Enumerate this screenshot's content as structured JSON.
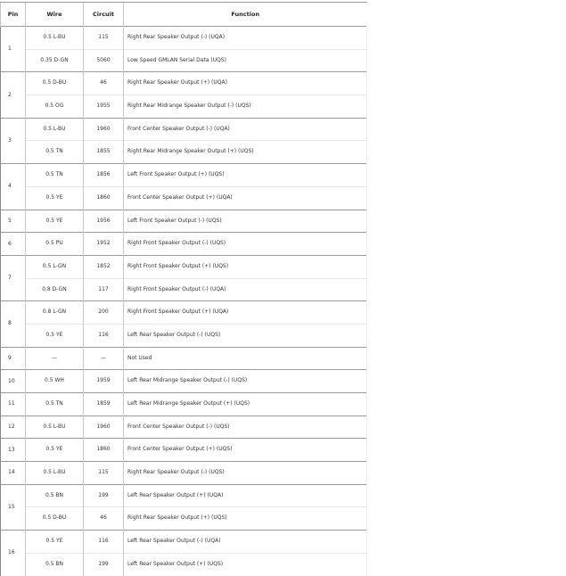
{
  "headers": {
    "pin": "Pin",
    "wire": "Wire",
    "circuit": "Circuit",
    "function": "Function"
  },
  "pins": [
    {
      "pin": "1",
      "rows": [
        [
          "0.5 L-BU",
          "115",
          "Right Rear Speaker Output (-) (UQA)"
        ],
        [
          "0.35 D-GN",
          "5060",
          "Low Speed GMLAN Serial Data (UQS)"
        ]
      ]
    },
    {
      "pin": "2",
      "rows": [
        [
          "0.5 D-BU",
          "46",
          "Right Rear Speaker Output (+) (UQA)"
        ],
        [
          "0.5 OG",
          "1955",
          "Right Rear Midrange Speaker Output (-) (UQS)"
        ]
      ]
    },
    {
      "pin": "3",
      "rows": [
        [
          "0.5 L-BU",
          "1960",
          "Front Center Speaker Output (-) (UQA)"
        ],
        [
          "0.5 TN",
          "1855",
          "Right Rear Midrange Speaker Output (+) (UQS)"
        ]
      ]
    },
    {
      "pin": "4",
      "rows": [
        [
          "0.5 TN",
          "1856",
          "Left Front Speaker Output (+) (UQS)"
        ],
        [
          "0.5 YE",
          "1860",
          "Front Center Speaker Output (+) (UQA)"
        ]
      ]
    },
    {
      "pin": "5",
      "rows": [
        [
          "0.5 YE",
          "1956",
          "Left Front Speaker Output (-) (UQS)"
        ]
      ]
    },
    {
      "pin": "6",
      "rows": [
        [
          "0.5 PU",
          "1952",
          "Right Front Speaker Output (-) (UQS)"
        ]
      ]
    },
    {
      "pin": "7",
      "rows": [
        [
          "0.5 L-GN",
          "1852",
          "Right Front Speaker Output (+) (UQS)"
        ],
        [
          "0.8 D-GN",
          "117",
          "Right Front Speaker Output (-) (UQA)"
        ]
      ]
    },
    {
      "pin": "8",
      "rows": [
        [
          "0.8 L-GN",
          "200",
          "Right Front Speaker Output (+) (UQA)"
        ],
        [
          "0.5 YE",
          "116",
          "Left Rear Speaker Output (-) (UQS)"
        ]
      ]
    },
    {
      "pin": "9",
      "rows": [
        [
          "—",
          "—",
          "Not Used"
        ]
      ]
    },
    {
      "pin": "10",
      "rows": [
        [
          "0.5 WH",
          "1959",
          "Left Rear Midrange Speaker Output (-) (UQS)"
        ]
      ]
    },
    {
      "pin": "11",
      "rows": [
        [
          "0.5 TN",
          "1859",
          "Left Rear Midrange Speaker Output (+) (UQS)"
        ]
      ]
    },
    {
      "pin": "12",
      "rows": [
        [
          "0.5 L-BU",
          "1960",
          "Front Center Speaker Output (-) (UQS)"
        ]
      ]
    },
    {
      "pin": "13",
      "rows": [
        [
          "0.5 YE",
          "1860",
          "Front Center Speaker Output (+) (UQS)"
        ]
      ]
    },
    {
      "pin": "14",
      "rows": [
        [
          "0.5 L-BU",
          "115",
          "Right Rear Speaker Output (-) (UQS)"
        ]
      ]
    },
    {
      "pin": "15",
      "rows": [
        [
          "0.5 BN",
          "199",
          "Left Rear Speaker Output (+) (UQA)"
        ],
        [
          "0.5 D-BU",
          "46",
          "Right Rear Speaker Output (+) (UQS)"
        ]
      ]
    },
    {
      "pin": "16",
      "rows": [
        [
          "0.5 YE",
          "116",
          "Left Rear Speaker Output (-) (UQA)"
        ],
        [
          "0.5 BN",
          "199",
          "Left Rear Speaker Output (+) (UQS)"
        ]
      ]
    }
  ]
}
